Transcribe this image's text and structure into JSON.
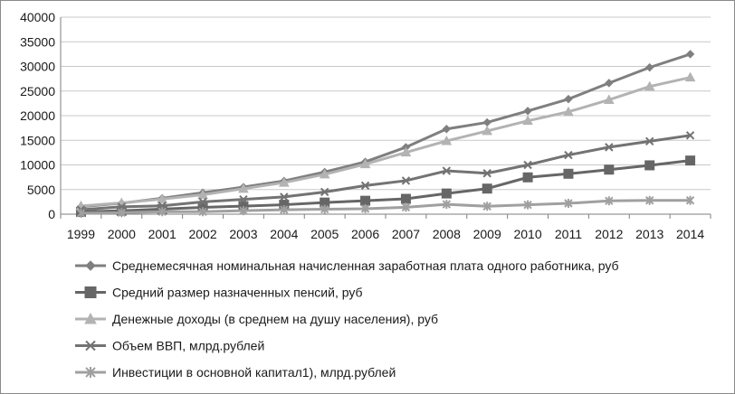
{
  "chart_data": {
    "type": "line",
    "title": "",
    "xlabel": "",
    "ylabel": "",
    "x": [
      "1999",
      "2000",
      "2001",
      "2002",
      "2003",
      "2004",
      "2005",
      "2006",
      "2007",
      "2008",
      "2009",
      "2010",
      "2011",
      "2012",
      "2013",
      "2014"
    ],
    "ylim": [
      0,
      40000
    ],
    "y_ticks": [
      "0",
      "5000",
      "10000",
      "15000",
      "20000",
      "25000",
      "30000",
      "35000",
      "40000"
    ],
    "grid": "horizontal",
    "legend_position": "bottom",
    "series": [
      {
        "name": "Среднемесячная номинальная начисленная заработная плата одного работника, руб",
        "marker": "diamond",
        "color": "#7f7f7f",
        "values": [
          1523,
          2223,
          3240,
          4360,
          5499,
          6740,
          8555,
          10634,
          13593,
          17290,
          18638,
          20952,
          23369,
          26629,
          29792,
          32495
        ]
      },
      {
        "name": "Средний размер назначенных пенсий, руб",
        "marker": "square",
        "color": "#666666",
        "values": [
          449,
          694,
          1024,
          1379,
          1637,
          1915,
          2364,
          2726,
          3116,
          4199,
          5191,
          7476,
          8203,
          9041,
          9918,
          10888
        ]
      },
      {
        "name": "Денежные доходы (в среднем на душу населения), руб",
        "marker": "triangle",
        "color": "#b3b3b3",
        "values": [
          1659,
          2281,
          3062,
          3947,
          5170,
          6410,
          8088,
          10155,
          12540,
          14864,
          16895,
          18958,
          20780,
          23221,
          25928,
          27766
        ]
      },
      {
        "name": "Объем ВВП, млрд.рублей",
        "marker": "x",
        "color": "#737373",
        "values": [
          900,
          1500,
          1700,
          2500,
          3000,
          3500,
          4500,
          5800,
          6800,
          8800,
          8300,
          10000,
          12000,
          13600,
          14800,
          16000
        ]
      },
      {
        "name": "Инвестиции в основной капитал1), млрд.рублей",
        "marker": "asterisk",
        "color": "#a0a0a0",
        "values": [
          200,
          300,
          500,
          500,
          700,
          900,
          1000,
          1100,
          1400,
          2000,
          1600,
          1900,
          2200,
          2700,
          2800,
          2800
        ]
      }
    ]
  }
}
